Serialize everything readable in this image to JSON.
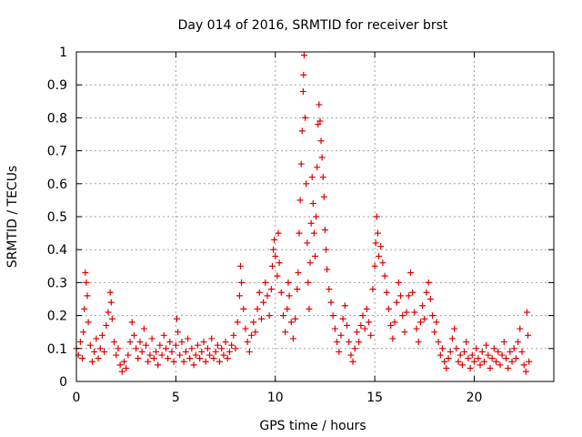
{
  "chart_data": {
    "type": "scatter",
    "title": "Day 014 of 2016, SRMTID for receiver brst",
    "xlabel": "GPS time / hours",
    "ylabel": "SRMTID / TECUs",
    "xlim": [
      0,
      24
    ],
    "ylim": [
      0,
      1
    ],
    "xticks": [
      0,
      5,
      10,
      15,
      20
    ],
    "yticks": [
      0,
      0.1,
      0.2,
      0.3,
      0.4,
      0.5,
      0.6,
      0.7,
      0.8,
      0.9,
      1
    ],
    "grid": true,
    "marker": "+",
    "series_color": "#e00000",
    "series": [
      {
        "name": "SRMTID",
        "points": [
          [
            0.0,
            0.1
          ],
          [
            0.1,
            0.08
          ],
          [
            0.2,
            0.12
          ],
          [
            0.3,
            0.07
          ],
          [
            0.35,
            0.15
          ],
          [
            0.4,
            0.22
          ],
          [
            0.45,
            0.33
          ],
          [
            0.5,
            0.3
          ],
          [
            0.55,
            0.26
          ],
          [
            0.6,
            0.18
          ],
          [
            0.7,
            0.11
          ],
          [
            0.8,
            0.06
          ],
          [
            0.9,
            0.09
          ],
          [
            1.0,
            0.13
          ],
          [
            1.1,
            0.07
          ],
          [
            1.2,
            0.1
          ],
          [
            1.3,
            0.14
          ],
          [
            1.4,
            0.09
          ],
          [
            1.5,
            0.17
          ],
          [
            1.6,
            0.21
          ],
          [
            1.7,
            0.27
          ],
          [
            1.75,
            0.24
          ],
          [
            1.8,
            0.19
          ],
          [
            1.9,
            0.12
          ],
          [
            2.0,
            0.08
          ],
          [
            2.1,
            0.1
          ],
          [
            2.2,
            0.05
          ],
          [
            2.3,
            0.03
          ],
          [
            2.4,
            0.06
          ],
          [
            2.5,
            0.04
          ],
          [
            2.6,
            0.08
          ],
          [
            2.7,
            0.12
          ],
          [
            2.8,
            0.18
          ],
          [
            2.9,
            0.14
          ],
          [
            3.0,
            0.1
          ],
          [
            3.1,
            0.07
          ],
          [
            3.2,
            0.12
          ],
          [
            3.3,
            0.09
          ],
          [
            3.4,
            0.16
          ],
          [
            3.5,
            0.11
          ],
          [
            3.6,
            0.06
          ],
          [
            3.7,
            0.08
          ],
          [
            3.8,
            0.13
          ],
          [
            3.9,
            0.07
          ],
          [
            4.0,
            0.09
          ],
          [
            4.1,
            0.05
          ],
          [
            4.2,
            0.11
          ],
          [
            4.3,
            0.08
          ],
          [
            4.4,
            0.14
          ],
          [
            4.5,
            0.1
          ],
          [
            4.6,
            0.07
          ],
          [
            4.7,
            0.12
          ],
          [
            4.8,
            0.09
          ],
          [
            4.9,
            0.06
          ],
          [
            5.0,
            0.11
          ],
          [
            5.05,
            0.19
          ],
          [
            5.1,
            0.15
          ],
          [
            5.2,
            0.08
          ],
          [
            5.3,
            0.12
          ],
          [
            5.4,
            0.06
          ],
          [
            5.5,
            0.09
          ],
          [
            5.6,
            0.13
          ],
          [
            5.7,
            0.07
          ],
          [
            5.8,
            0.1
          ],
          [
            5.9,
            0.05
          ],
          [
            6.0,
            0.08
          ],
          [
            6.1,
            0.11
          ],
          [
            6.2,
            0.07
          ],
          [
            6.3,
            0.09
          ],
          [
            6.4,
            0.12
          ],
          [
            6.5,
            0.06
          ],
          [
            6.6,
            0.1
          ],
          [
            6.7,
            0.08
          ],
          [
            6.8,
            0.13
          ],
          [
            6.9,
            0.07
          ],
          [
            7.0,
            0.09
          ],
          [
            7.1,
            0.11
          ],
          [
            7.2,
            0.06
          ],
          [
            7.3,
            0.1
          ],
          [
            7.4,
            0.08
          ],
          [
            7.5,
            0.12
          ],
          [
            7.6,
            0.07
          ],
          [
            7.7,
            0.09
          ],
          [
            7.8,
            0.11
          ],
          [
            7.9,
            0.14
          ],
          [
            8.0,
            0.1
          ],
          [
            8.1,
            0.18
          ],
          [
            8.2,
            0.26
          ],
          [
            8.25,
            0.35
          ],
          [
            8.3,
            0.3
          ],
          [
            8.4,
            0.22
          ],
          [
            8.5,
            0.16
          ],
          [
            8.6,
            0.12
          ],
          [
            8.7,
            0.09
          ],
          [
            8.8,
            0.14
          ],
          [
            8.9,
            0.18
          ],
          [
            9.0,
            0.15
          ],
          [
            9.1,
            0.22
          ],
          [
            9.2,
            0.27
          ],
          [
            9.3,
            0.19
          ],
          [
            9.4,
            0.24
          ],
          [
            9.5,
            0.3
          ],
          [
            9.6,
            0.26
          ],
          [
            9.7,
            0.2
          ],
          [
            9.8,
            0.28
          ],
          [
            9.85,
            0.35
          ],
          [
            9.9,
            0.4
          ],
          [
            9.95,
            0.43
          ],
          [
            10.0,
            0.38
          ],
          [
            10.1,
            0.32
          ],
          [
            10.15,
            0.45
          ],
          [
            10.2,
            0.36
          ],
          [
            10.3,
            0.27
          ],
          [
            10.4,
            0.2
          ],
          [
            10.5,
            0.15
          ],
          [
            10.6,
            0.22
          ],
          [
            10.65,
            0.3
          ],
          [
            10.7,
            0.26
          ],
          [
            10.8,
            0.18
          ],
          [
            10.9,
            0.13
          ],
          [
            11.0,
            0.19
          ],
          [
            11.1,
            0.28
          ],
          [
            11.15,
            0.33
          ],
          [
            11.2,
            0.45
          ],
          [
            11.25,
            0.55
          ],
          [
            11.3,
            0.66
          ],
          [
            11.35,
            0.76
          ],
          [
            11.4,
            0.88
          ],
          [
            11.42,
            0.93
          ],
          [
            11.45,
            0.99
          ],
          [
            11.5,
            0.8
          ],
          [
            11.55,
            0.6
          ],
          [
            11.6,
            0.42
          ],
          [
            11.65,
            0.3
          ],
          [
            11.7,
            0.22
          ],
          [
            11.75,
            0.36
          ],
          [
            11.8,
            0.48
          ],
          [
            11.85,
            0.62
          ],
          [
            11.9,
            0.54
          ],
          [
            11.95,
            0.45
          ],
          [
            12.0,
            0.38
          ],
          [
            12.05,
            0.5
          ],
          [
            12.1,
            0.65
          ],
          [
            12.15,
            0.78
          ],
          [
            12.2,
            0.84
          ],
          [
            12.25,
            0.79
          ],
          [
            12.3,
            0.73
          ],
          [
            12.35,
            0.68
          ],
          [
            12.4,
            0.62
          ],
          [
            12.45,
            0.56
          ],
          [
            12.5,
            0.46
          ],
          [
            12.55,
            0.4
          ],
          [
            12.6,
            0.34
          ],
          [
            12.7,
            0.28
          ],
          [
            12.8,
            0.24
          ],
          [
            12.9,
            0.2
          ],
          [
            13.0,
            0.16
          ],
          [
            13.1,
            0.12
          ],
          [
            13.2,
            0.09
          ],
          [
            13.3,
            0.14
          ],
          [
            13.4,
            0.19
          ],
          [
            13.5,
            0.23
          ],
          [
            13.6,
            0.17
          ],
          [
            13.7,
            0.12
          ],
          [
            13.8,
            0.08
          ],
          [
            13.9,
            0.06
          ],
          [
            14.0,
            0.1
          ],
          [
            14.1,
            0.15
          ],
          [
            14.2,
            0.12
          ],
          [
            14.3,
            0.17
          ],
          [
            14.4,
            0.2
          ],
          [
            14.5,
            0.16
          ],
          [
            14.6,
            0.22
          ],
          [
            14.7,
            0.18
          ],
          [
            14.8,
            0.14
          ],
          [
            14.9,
            0.28
          ],
          [
            15.0,
            0.35
          ],
          [
            15.05,
            0.42
          ],
          [
            15.1,
            0.5
          ],
          [
            15.15,
            0.45
          ],
          [
            15.2,
            0.38
          ],
          [
            15.3,
            0.41
          ],
          [
            15.4,
            0.36
          ],
          [
            15.5,
            0.32
          ],
          [
            15.6,
            0.27
          ],
          [
            15.7,
            0.22
          ],
          [
            15.8,
            0.17
          ],
          [
            15.9,
            0.13
          ],
          [
            16.0,
            0.18
          ],
          [
            16.1,
            0.24
          ],
          [
            16.2,
            0.3
          ],
          [
            16.3,
            0.26
          ],
          [
            16.4,
            0.2
          ],
          [
            16.5,
            0.15
          ],
          [
            16.6,
            0.21
          ],
          [
            16.7,
            0.26
          ],
          [
            16.8,
            0.33
          ],
          [
            16.9,
            0.27
          ],
          [
            17.0,
            0.21
          ],
          [
            17.1,
            0.16
          ],
          [
            17.2,
            0.12
          ],
          [
            17.3,
            0.18
          ],
          [
            17.4,
            0.23
          ],
          [
            17.5,
            0.19
          ],
          [
            17.6,
            0.27
          ],
          [
            17.7,
            0.3
          ],
          [
            17.8,
            0.25
          ],
          [
            17.9,
            0.2
          ],
          [
            18.0,
            0.15
          ],
          [
            18.1,
            0.18
          ],
          [
            18.2,
            0.12
          ],
          [
            18.3,
            0.08
          ],
          [
            18.4,
            0.1
          ],
          [
            18.5,
            0.06
          ],
          [
            18.6,
            0.04
          ],
          [
            18.7,
            0.07
          ],
          [
            18.8,
            0.09
          ],
          [
            18.9,
            0.13
          ],
          [
            19.0,
            0.16
          ],
          [
            19.1,
            0.1
          ],
          [
            19.2,
            0.06
          ],
          [
            19.3,
            0.08
          ],
          [
            19.4,
            0.05
          ],
          [
            19.5,
            0.09
          ],
          [
            19.6,
            0.12
          ],
          [
            19.7,
            0.07
          ],
          [
            19.8,
            0.04
          ],
          [
            19.9,
            0.08
          ],
          [
            20.0,
            0.06
          ],
          [
            20.1,
            0.1
          ],
          [
            20.2,
            0.07
          ],
          [
            20.3,
            0.05
          ],
          [
            20.4,
            0.09
          ],
          [
            20.5,
            0.06
          ],
          [
            20.6,
            0.11
          ],
          [
            20.7,
            0.08
          ],
          [
            20.8,
            0.04
          ],
          [
            20.9,
            0.07
          ],
          [
            21.0,
            0.1
          ],
          [
            21.1,
            0.06
          ],
          [
            21.2,
            0.09
          ],
          [
            21.3,
            0.05
          ],
          [
            21.4,
            0.08
          ],
          [
            21.5,
            0.12
          ],
          [
            21.6,
            0.07
          ],
          [
            21.7,
            0.04
          ],
          [
            21.8,
            0.09
          ],
          [
            21.9,
            0.06
          ],
          [
            22.0,
            0.1
          ],
          [
            22.1,
            0.07
          ],
          [
            22.2,
            0.12
          ],
          [
            22.3,
            0.16
          ],
          [
            22.4,
            0.09
          ],
          [
            22.5,
            0.05
          ],
          [
            22.6,
            0.03
          ],
          [
            22.65,
            0.21
          ],
          [
            22.7,
            0.14
          ],
          [
            22.75,
            0.06
          ]
        ]
      }
    ]
  }
}
